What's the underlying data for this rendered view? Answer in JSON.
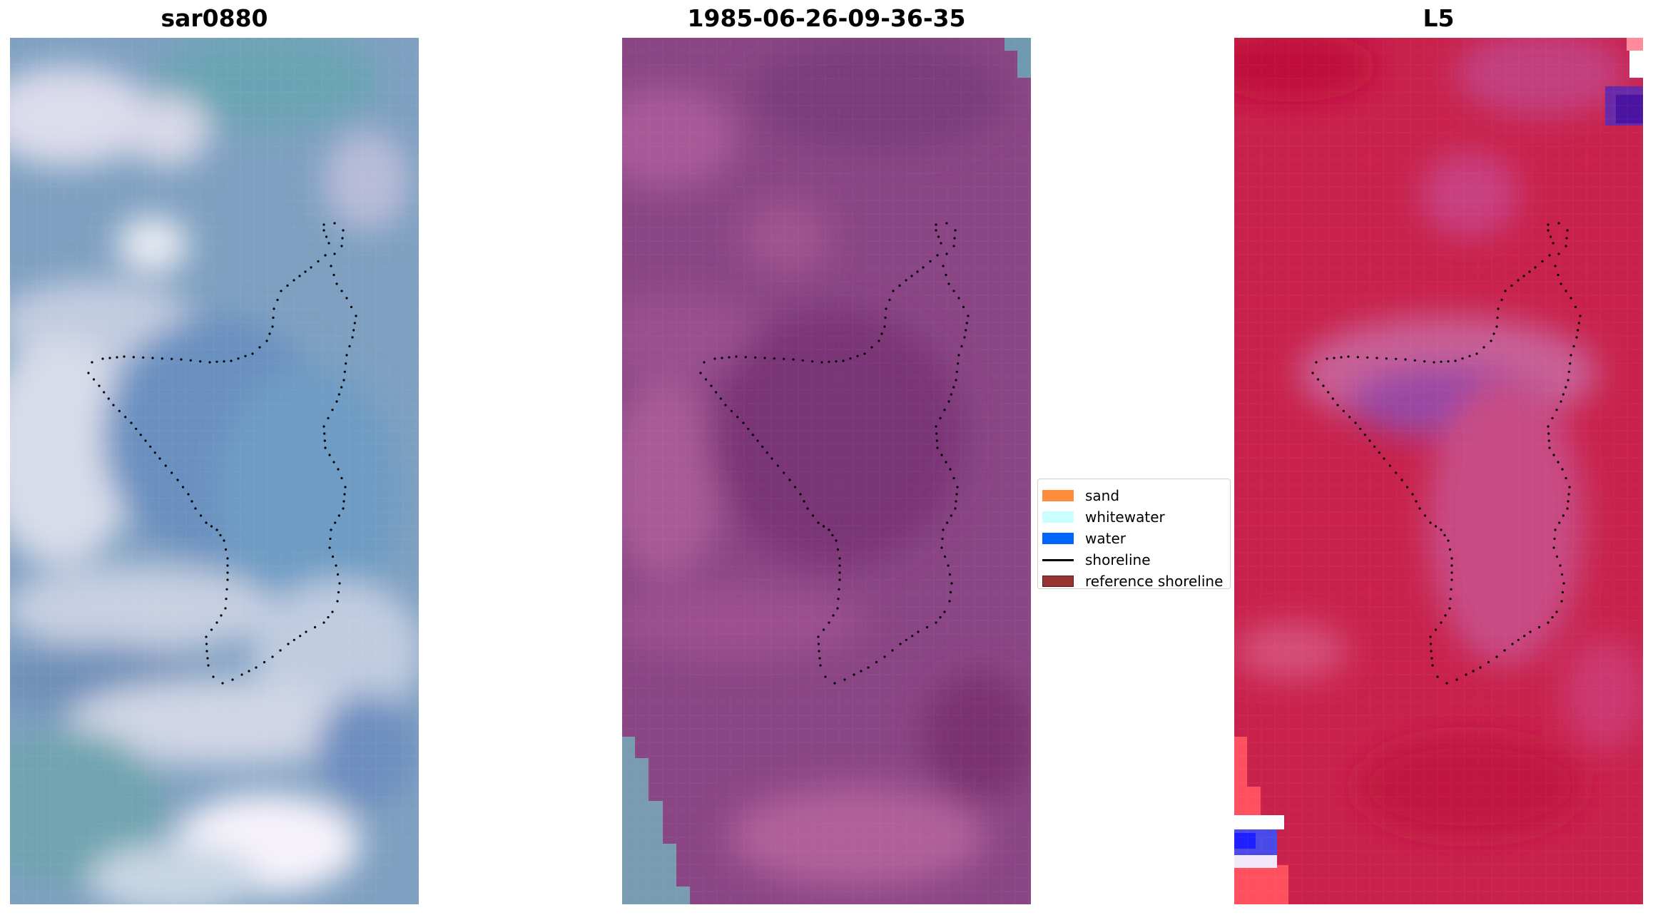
{
  "panels": [
    {
      "title": "sar0880"
    },
    {
      "title": "1985-06-26-09-36-35"
    },
    {
      "title": "L5"
    }
  ],
  "legend": {
    "items": [
      {
        "label": "sand",
        "color": "#ff8c3c",
        "kind": "patch"
      },
      {
        "label": "whitewater",
        "color": "#c8ffff",
        "kind": "patch"
      },
      {
        "label": "water",
        "color": "#0064ff",
        "kind": "patch"
      },
      {
        "label": "shoreline",
        "color": "#000000",
        "kind": "line"
      },
      {
        "label": "reference shoreline",
        "color": "#963232",
        "kind": "patch"
      }
    ]
  }
}
